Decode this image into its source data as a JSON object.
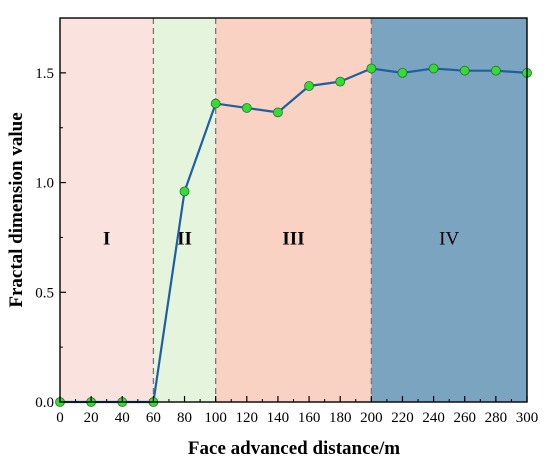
{
  "chart_data": {
    "type": "line",
    "title": "",
    "xlabel": "Face advanced distance/m",
    "ylabel": "Fractal dimension value",
    "xlim": [
      0,
      300
    ],
    "ylim": [
      0,
      1.75
    ],
    "x_ticks": [
      0,
      20,
      40,
      60,
      80,
      100,
      120,
      140,
      160,
      180,
      200,
      220,
      240,
      260,
      280,
      300
    ],
    "y_ticks": [
      0.0,
      0.5,
      1.0,
      1.5
    ],
    "y_tick_labels": [
      "0.0",
      "0.5",
      "1.0",
      "1.5"
    ],
    "grid": false,
    "legend": "none",
    "series": [
      {
        "x": [
          0,
          20,
          40,
          60,
          80,
          100,
          120,
          140,
          160,
          180,
          200,
          220,
          240,
          260,
          280,
          300
        ],
        "values": [
          0,
          0,
          0,
          0,
          0.96,
          1.36,
          1.34,
          1.32,
          1.44,
          1.46,
          1.52,
          1.5,
          1.52,
          1.51,
          1.51,
          1.5
        ],
        "line_color": "#1f5fa0",
        "marker_color": "#33dd33"
      }
    ],
    "zones": [
      {
        "label": "I",
        "from": 0,
        "to": 60,
        "color": "#fae3df",
        "bold": true
      },
      {
        "label": "II",
        "from": 60,
        "to": 100,
        "color": "#e5f4dd",
        "bold": true
      },
      {
        "label": "III",
        "from": 100,
        "to": 200,
        "color": "#f9d2c3",
        "bold": true
      },
      {
        "label": "IV",
        "from": 200,
        "to": 300,
        "color": "#7aa4bf",
        "bold": false
      }
    ],
    "zone_boundaries": [
      60,
      100,
      200
    ],
    "zone_label_y": 0.75
  }
}
